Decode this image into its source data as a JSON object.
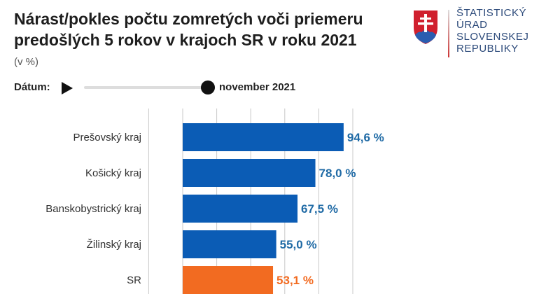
{
  "title": "Nárast/pokles počtu zomretých voči priemeru predošlých 5 rokov v krajoch SR v roku 2021",
  "subtitle": "(v %)",
  "controls": {
    "date_label": "Dátum:",
    "date_value": "november 2021",
    "slider_position": 1.0
  },
  "logo": {
    "text": [
      "ŠTATISTICKÝ",
      "ÚRAD",
      "SLOVENSKEJ",
      "REPUBLIKY"
    ]
  },
  "chart_data": {
    "type": "bar",
    "orientation": "horizontal",
    "categories": [
      "Prešovský kraj",
      "Košický kraj",
      "Banskobystrický kraj",
      "Žilinský kraj",
      "SR"
    ],
    "values": [
      94.6,
      78.0,
      67.5,
      55.0,
      53.1
    ],
    "labels": [
      "94,6 %",
      "78,0 %",
      "67,5 %",
      "55,0 %",
      "53,1 %"
    ],
    "colors": [
      "#0b5cb5",
      "#0b5cb5",
      "#0b5cb5",
      "#0b5cb5",
      "#f26b21"
    ],
    "label_colors": [
      "#1f6aa5",
      "#1f6aa5",
      "#1f6aa5",
      "#1f6aa5",
      "#f26b21"
    ],
    "xlim": [
      -20,
      100
    ],
    "grid": true,
    "gridlines": [
      -20,
      0,
      20,
      40,
      60,
      80,
      100
    ]
  }
}
